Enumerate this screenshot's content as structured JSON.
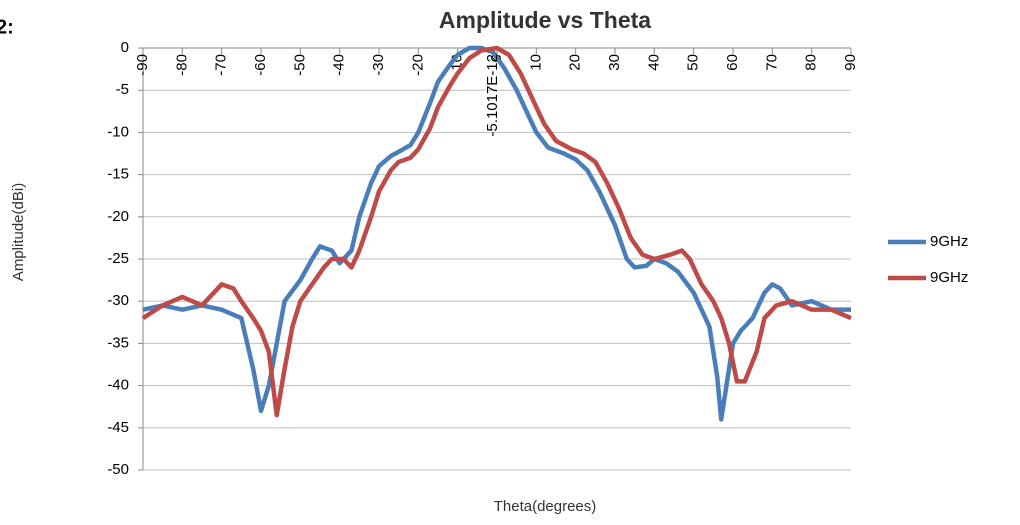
{
  "chart_data": {
    "type": "line",
    "page_label": "2:",
    "title": "Amplitude vs Theta",
    "xlabel": "Theta(degrees)",
    "ylabel": "Amplitude(dBi)",
    "annotation": "-5.1017E-12",
    "xlim": [
      -90,
      90
    ],
    "xticks": [
      -90,
      -80,
      -70,
      -60,
      -50,
      -40,
      -30,
      -20,
      -10,
      0,
      10,
      20,
      30,
      40,
      50,
      60,
      70,
      80,
      90
    ],
    "ylim": [
      -50,
      0
    ],
    "yticks": [
      0,
      -5,
      -10,
      -15,
      -20,
      -25,
      -30,
      -35,
      -40,
      -45,
      -50
    ],
    "grid": true,
    "legend": "right",
    "series": [
      {
        "name": "9GHz",
        "color": "#4a7ebb",
        "x": [
          -90,
          -85,
          -80,
          -75,
          -70,
          -65,
          -62,
          -60,
          -58,
          -56,
          -54,
          -50,
          -47,
          -45,
          -42,
          -40,
          -37,
          -35,
          -32,
          -30,
          -27,
          -25,
          -22,
          -20,
          -17,
          -15,
          -12,
          -10,
          -7,
          -4,
          -1,
          2,
          5,
          8,
          10,
          13,
          17,
          20,
          23,
          26,
          30,
          33,
          35,
          38,
          40,
          43,
          46,
          50,
          54,
          56,
          57,
          58,
          60,
          62,
          65,
          68,
          70,
          72,
          75,
          80,
          85,
          90
        ],
        "values": [
          -31,
          -30.5,
          -31,
          -30.5,
          -31,
          -32,
          -38,
          -43,
          -40,
          -35,
          -30,
          -27.5,
          -25,
          -23.5,
          -24,
          -25.5,
          -24,
          -20,
          -16,
          -14,
          -12.8,
          -12.3,
          -11.5,
          -10,
          -6.5,
          -4,
          -2,
          -0.8,
          0,
          0,
          -0.5,
          -2.5,
          -5,
          -8,
          -10,
          -11.8,
          -12.5,
          -13.2,
          -14.5,
          -17,
          -21,
          -25,
          -26,
          -25.8,
          -25,
          -25.5,
          -26.5,
          -29,
          -33,
          -39,
          -44,
          -41,
          -35,
          -33.5,
          -32,
          -29,
          -28,
          -28.5,
          -30.5,
          -30,
          -31,
          -31
        ]
      },
      {
        "name": "9GHz",
        "color": "#be4b48",
        "x": [
          -90,
          -85,
          -80,
          -75,
          -70,
          -67,
          -65,
          -62,
          -60,
          -58,
          -56,
          -54,
          -52,
          -50,
          -47,
          -44,
          -42,
          -39,
          -37,
          -35,
          -32,
          -30,
          -27,
          -25,
          -22,
          -20,
          -17,
          -15,
          -12,
          -10,
          -7,
          -4,
          0,
          3,
          6,
          9,
          12,
          15,
          19,
          22,
          25,
          28,
          31,
          34,
          37,
          40,
          44,
          47,
          49,
          52,
          55,
          57,
          59,
          61,
          63,
          66,
          68,
          71,
          75,
          80,
          85,
          90
        ],
        "values": [
          -32,
          -30.5,
          -29.5,
          -30.5,
          -28,
          -28.5,
          -30,
          -32,
          -33.5,
          -36,
          -43.5,
          -38,
          -33,
          -30,
          -28,
          -26,
          -25,
          -25,
          -26,
          -24,
          -20,
          -17,
          -14.5,
          -13.5,
          -13,
          -12,
          -9.5,
          -7,
          -4.5,
          -3,
          -1.2,
          -0.3,
          0,
          -0.8,
          -3,
          -6,
          -9,
          -11,
          -12,
          -12.5,
          -13.5,
          -16,
          -19,
          -22.5,
          -24.5,
          -25,
          -24.5,
          -24,
          -25,
          -28,
          -30,
          -32,
          -35,
          -39.5,
          -39.5,
          -36,
          -32,
          -30.5,
          -30,
          -31,
          -31,
          -32
        ]
      }
    ]
  }
}
